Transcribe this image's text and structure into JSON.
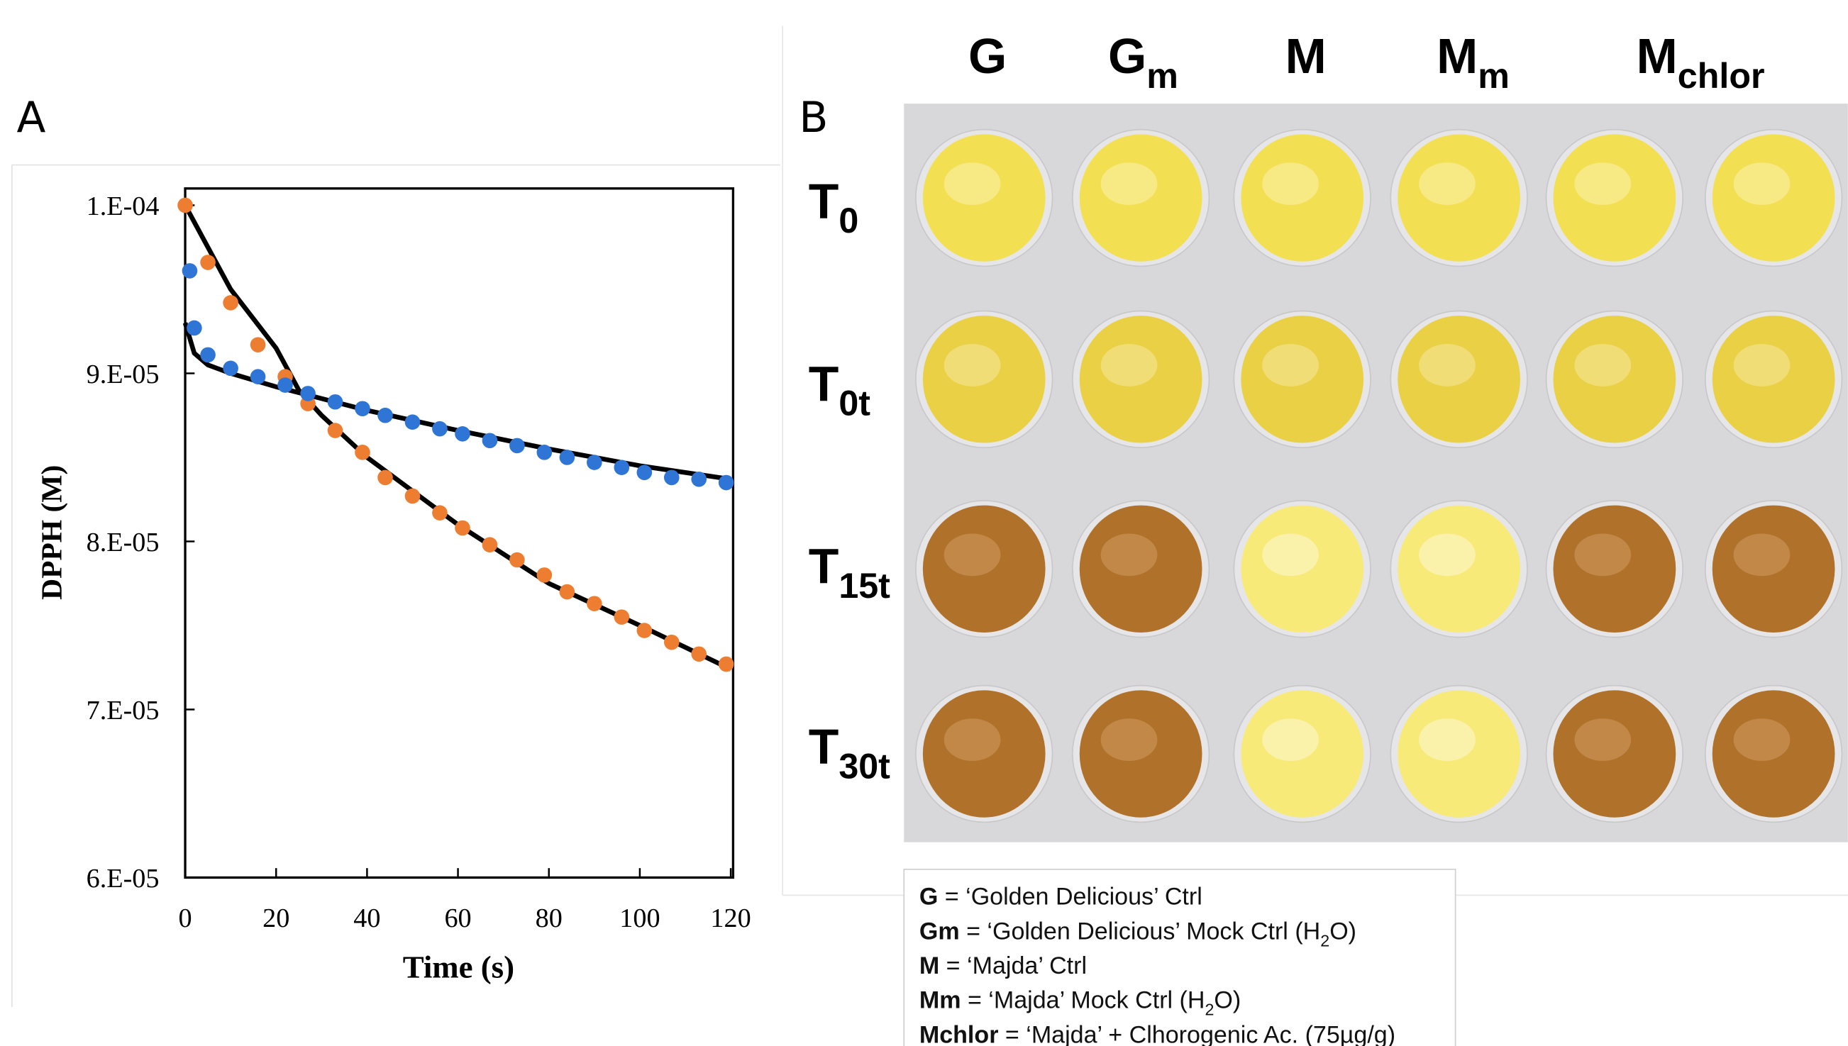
{
  "chart_data": {
    "type": "scatter",
    "panel_label": "A",
    "x_label": "Time (s)",
    "y_label": "DPPH (M)",
    "xlim": [
      0,
      120
    ],
    "ylim": [
      6e-05,
      0.000101
    ],
    "xticks": [
      0,
      20,
      40,
      60,
      80,
      100,
      120
    ],
    "yticks": [
      {
        "value": 6e-05,
        "label": "6.E-05"
      },
      {
        "value": 7e-05,
        "label": "7.E-05"
      },
      {
        "value": 8e-05,
        "label": "8.E-05"
      },
      {
        "value": 9e-05,
        "label": "9.E-05"
      },
      {
        "value": 0.0001,
        "label": "1.E-04"
      }
    ],
    "series": [
      {
        "color": "#000000",
        "line": true,
        "x": [
          0,
          5,
          10,
          20,
          25,
          30,
          40,
          60,
          80,
          100,
          120
        ],
        "values": [
          0.0001,
          9.75e-05,
          9.5e-05,
          9.15e-05,
          8.9e-05,
          8.75e-05,
          8.5e-05,
          8.1e-05,
          7.75e-05,
          7.5e-05,
          7.24e-05
        ]
      },
      {
        "color": "#000000",
        "line": true,
        "x": [
          0,
          2,
          5,
          10,
          20,
          40,
          60,
          80,
          100,
          120
        ],
        "values": [
          9.3e-05,
          9.12e-05,
          9.05e-05,
          9e-05,
          8.92e-05,
          8.78e-05,
          8.66e-05,
          8.55e-05,
          8.45e-05,
          8.37e-05
        ]
      },
      {
        "color": "#ed7d31",
        "x": [
          0,
          5,
          10,
          16,
          22,
          27,
          33,
          39,
          44,
          50,
          56,
          61,
          67,
          73,
          79,
          84,
          90,
          96,
          101,
          107,
          113,
          119
        ],
        "values": [
          0.0001,
          9.66e-05,
          9.42e-05,
          9.17e-05,
          8.98e-05,
          8.82e-05,
          8.66e-05,
          8.53e-05,
          8.38e-05,
          8.27e-05,
          8.17e-05,
          8.08e-05,
          7.98e-05,
          7.89e-05,
          7.8e-05,
          7.7e-05,
          7.63e-05,
          7.55e-05,
          7.47e-05,
          7.4e-05,
          7.33e-05,
          7.27e-05
        ]
      },
      {
        "color": "#2e75d6",
        "x": [
          1,
          2,
          5,
          10,
          16,
          22,
          27,
          33,
          39,
          44,
          50,
          56,
          61,
          67,
          73,
          79,
          84,
          90,
          96,
          101,
          107,
          113,
          119
        ],
        "values": [
          9.61e-05,
          9.27e-05,
          9.11e-05,
          9.03e-05,
          8.98e-05,
          8.93e-05,
          8.88e-05,
          8.83e-05,
          8.79e-05,
          8.75e-05,
          8.71e-05,
          8.67e-05,
          8.64e-05,
          8.6e-05,
          8.57e-05,
          8.53e-05,
          8.5e-05,
          8.47e-05,
          8.44e-05,
          8.41e-05,
          8.38e-05,
          8.37e-05,
          8.35e-05
        ]
      }
    ]
  },
  "panel_b": {
    "panel_label": "B",
    "columns": [
      {
        "main": "G"
      },
      {
        "main": "G",
        "sub": "m"
      },
      {
        "main": "M"
      },
      {
        "main": "M",
        "sub": "m"
      },
      {
        "main": "M",
        "sub": "chlor"
      }
    ],
    "rows": [
      {
        "main": "T",
        "sub": "0"
      },
      {
        "main": "T",
        "sub": "0t"
      },
      {
        "main": "T",
        "sub": "15t"
      },
      {
        "main": "T",
        "sub": "30t"
      }
    ],
    "legend": [
      {
        "key": "G",
        "parts": [
          " = ‘Golden Delicious’ Ctrl"
        ]
      },
      {
        "key": "Gm",
        "parts": [
          " = ‘Golden Delicious’ Mock Ctrl (H",
          "2",
          "O)"
        ]
      },
      {
        "key": "M",
        "parts": [
          " = ‘Majda’ Ctrl"
        ]
      },
      {
        "key": "Mm",
        "parts": [
          " = ‘Majda’ Mock Ctrl (H",
          "2",
          "O)"
        ]
      },
      {
        "key": "Mchlor",
        "parts": [
          " = ‘Majda’ + Clhorogenic Ac. (75µg/g)"
        ]
      }
    ]
  }
}
